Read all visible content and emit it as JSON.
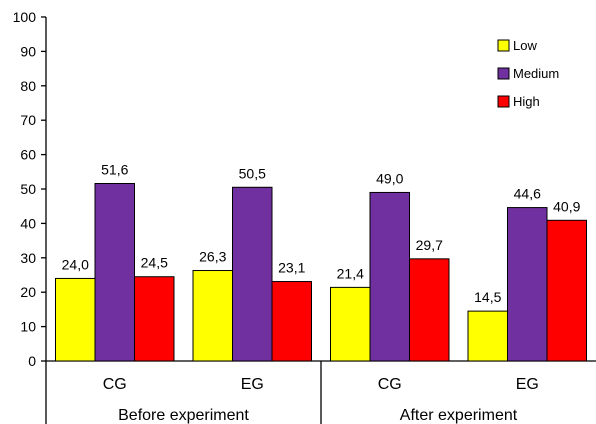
{
  "chart_data": {
    "type": "bar",
    "groups": [
      {
        "label": "Before experiment",
        "categories": [
          "CG",
          "EG"
        ]
      },
      {
        "label": "After experiment",
        "categories": [
          "CG",
          "EG"
        ]
      }
    ],
    "categories": [
      "CG",
      "EG",
      "CG",
      "EG"
    ],
    "series": [
      {
        "name": "Low",
        "color": "#ffff00",
        "values": [
          24.0,
          26.3,
          21.4,
          14.5
        ],
        "labels": [
          "24,0",
          "26,3",
          "21,4",
          "14,5"
        ]
      },
      {
        "name": "Medium",
        "color": "#7030a0",
        "values": [
          51.6,
          50.5,
          49.0,
          44.6
        ],
        "labels": [
          "51,6",
          "50,5",
          "49,0",
          "44,6"
        ]
      },
      {
        "name": "High",
        "color": "#ff0000",
        "values": [
          24.5,
          23.1,
          29.7,
          40.9
        ],
        "labels": [
          "24,5",
          "23,1",
          "29,7",
          "40,9"
        ]
      }
    ],
    "ylim": [
      0,
      100
    ],
    "yticks": [
      0,
      10,
      20,
      30,
      40,
      50,
      60,
      70,
      80,
      90,
      100
    ],
    "legend_position": "top-right",
    "grid": false
  }
}
